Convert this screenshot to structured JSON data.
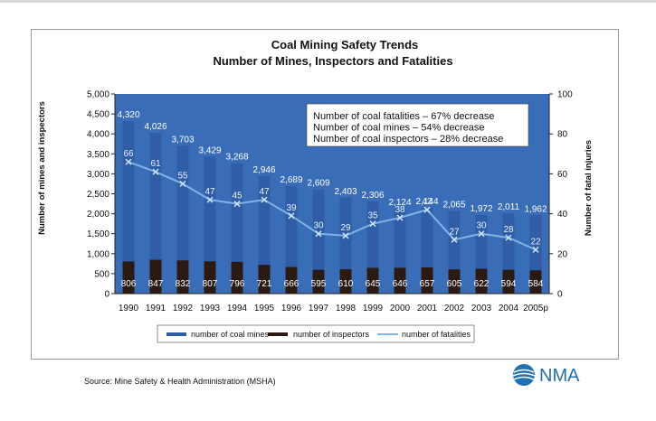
{
  "chart_data": {
    "type": "bar",
    "title": "Coal Mining Safety Trends",
    "subtitle": "Number of Mines, Inspectors and Fatalities",
    "categories": [
      "1990",
      "1991",
      "1992",
      "1993",
      "1994",
      "1995",
      "1996",
      "1997",
      "1998",
      "1999",
      "2000",
      "2001",
      "2002",
      "2003",
      "2004",
      "2005p"
    ],
    "series": [
      {
        "name": "number of coal mines",
        "axis": "left",
        "type": "bar",
        "color": "#2f5ea6",
        "values": [
          4320,
          4026,
          3703,
          3429,
          3268,
          2946,
          2689,
          2609,
          2403,
          2306,
          2124,
          2144,
          2065,
          1972,
          2011,
          1962
        ],
        "labels": [
          "4,320",
          "4,026",
          "3,703",
          "3,429",
          "3,268",
          "2,946",
          "2,689",
          "2,609",
          "2,403",
          "2,306",
          "2,124",
          "2,144",
          "2,065",
          "1,972",
          "2,011",
          "1,962"
        ]
      },
      {
        "name": "number of inspectors",
        "axis": "left",
        "type": "bar",
        "color": "#2a1a12",
        "values": [
          806,
          847,
          832,
          807,
          796,
          721,
          666,
          595,
          610,
          645,
          646,
          657,
          605,
          622,
          594,
          584
        ],
        "labels": [
          "806",
          "847",
          "832",
          "807",
          "796",
          "721",
          "666",
          "595",
          "610",
          "645",
          "646",
          "657",
          "605",
          "622",
          "594",
          "584"
        ]
      },
      {
        "name": "number of fatalities",
        "axis": "right",
        "type": "line",
        "color": "#7fb4e6",
        "values": [
          66,
          61,
          55,
          47,
          45,
          47,
          39,
          30,
          29,
          35,
          38,
          42,
          27,
          30,
          28,
          22
        ],
        "labels": [
          "66",
          "61",
          "55",
          "47",
          "45",
          "47",
          "39",
          "30",
          "29",
          "35",
          "38",
          "42",
          "27",
          "30",
          "28",
          "22"
        ]
      }
    ],
    "ylabel": "Number of mines and inspectors",
    "y2label": "Number of fatal injuries",
    "ylim": [
      0,
      5000
    ],
    "y2lim": [
      0,
      100
    ],
    "yticks": [
      "0",
      "500",
      "1,000",
      "1,500",
      "2,000",
      "2,500",
      "3,000",
      "3,500",
      "4,000",
      "4,500",
      "5,000"
    ],
    "y2ticks": [
      "0",
      "20",
      "40",
      "60",
      "80",
      "100"
    ],
    "annotations": [
      "Number of coal fatalities – 67% decrease",
      "Number of coal mines – 54% decrease",
      "Number of coal inspectors – 28% decrease"
    ],
    "legend_position": "bottom",
    "plot_background": "#3a6db8"
  },
  "source": "Source: Mine Safety & Health Administration (MSHA)",
  "logo": {
    "text": "NMA",
    "icon": "nma-globe-icon",
    "color": "#1f6fb3"
  }
}
